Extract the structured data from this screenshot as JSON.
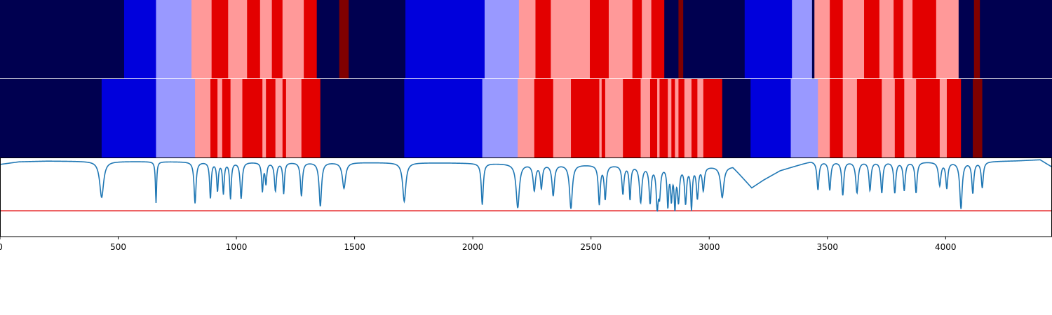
{
  "chart_data": [
    {
      "type": "heatmap",
      "xlim": [
        0,
        4450
      ],
      "colors": {
        "0": "#000050",
        "1": "#0000dc",
        "2": "#9999ff",
        "3": "#ff9999",
        "4": "#e30000",
        "5": "#800000"
      },
      "segments": [
        [
          0,
          525,
          0
        ],
        [
          525,
          660,
          1
        ],
        [
          660,
          810,
          2
        ],
        [
          810,
          895,
          3
        ],
        [
          895,
          965,
          4
        ],
        [
          965,
          1045,
          3
        ],
        [
          1045,
          1100,
          4
        ],
        [
          1100,
          1150,
          3
        ],
        [
          1150,
          1195,
          4
        ],
        [
          1195,
          1285,
          3
        ],
        [
          1285,
          1340,
          4
        ],
        [
          1340,
          1435,
          0
        ],
        [
          1435,
          1475,
          5
        ],
        [
          1475,
          1715,
          0
        ],
        [
          1715,
          2050,
          1
        ],
        [
          2050,
          2195,
          2
        ],
        [
          2195,
          2265,
          3
        ],
        [
          2265,
          2330,
          4
        ],
        [
          2330,
          2495,
          3
        ],
        [
          2495,
          2575,
          4
        ],
        [
          2575,
          2675,
          3
        ],
        [
          2675,
          2715,
          4
        ],
        [
          2715,
          2755,
          3
        ],
        [
          2755,
          2810,
          4
        ],
        [
          2810,
          2870,
          0
        ],
        [
          2870,
          2890,
          5
        ],
        [
          2890,
          3150,
          0
        ],
        [
          3150,
          3350,
          1
        ],
        [
          3350,
          3435,
          2
        ],
        [
          3435,
          3445,
          0
        ],
        [
          3445,
          3510,
          3
        ],
        [
          3510,
          3565,
          4
        ],
        [
          3565,
          3655,
          3
        ],
        [
          3655,
          3720,
          4
        ],
        [
          3720,
          3780,
          3
        ],
        [
          3780,
          3820,
          4
        ],
        [
          3820,
          3860,
          3
        ],
        [
          3860,
          3960,
          4
        ],
        [
          3960,
          4055,
          3
        ],
        [
          4055,
          4120,
          0
        ],
        [
          4120,
          4145,
          5
        ],
        [
          4145,
          4450,
          0
        ]
      ]
    },
    {
      "type": "heatmap",
      "xlim": [
        0,
        4450
      ],
      "colors": {
        "0": "#000050",
        "1": "#0000dc",
        "2": "#9999ff",
        "3": "#ff9999",
        "4": "#e30000",
        "5": "#800000"
      },
      "segments": [
        [
          0,
          430,
          0
        ],
        [
          430,
          660,
          1
        ],
        [
          660,
          825,
          2
        ],
        [
          825,
          890,
          3
        ],
        [
          890,
          920,
          4
        ],
        [
          920,
          940,
          3
        ],
        [
          940,
          975,
          4
        ],
        [
          975,
          1025,
          3
        ],
        [
          1025,
          1110,
          4
        ],
        [
          1110,
          1125,
          3
        ],
        [
          1125,
          1165,
          4
        ],
        [
          1165,
          1195,
          3
        ],
        [
          1195,
          1210,
          4
        ],
        [
          1210,
          1275,
          3
        ],
        [
          1275,
          1355,
          4
        ],
        [
          1355,
          1710,
          0
        ],
        [
          1710,
          2040,
          1
        ],
        [
          2040,
          2190,
          2
        ],
        [
          2190,
          2260,
          3
        ],
        [
          2260,
          2340,
          4
        ],
        [
          2340,
          2415,
          3
        ],
        [
          2415,
          2535,
          4
        ],
        [
          2535,
          2545,
          3
        ],
        [
          2545,
          2560,
          4
        ],
        [
          2560,
          2635,
          3
        ],
        [
          2635,
          2710,
          4
        ],
        [
          2710,
          2750,
          3
        ],
        [
          2750,
          2780,
          4
        ],
        [
          2780,
          2790,
          3
        ],
        [
          2790,
          2825,
          4
        ],
        [
          2825,
          2840,
          3
        ],
        [
          2840,
          2855,
          4
        ],
        [
          2855,
          2870,
          3
        ],
        [
          2870,
          2895,
          4
        ],
        [
          2895,
          2925,
          3
        ],
        [
          2925,
          2950,
          4
        ],
        [
          2950,
          2975,
          3
        ],
        [
          2975,
          3055,
          4
        ],
        [
          3055,
          3175,
          0
        ],
        [
          3175,
          3345,
          1
        ],
        [
          3345,
          3460,
          2
        ],
        [
          3460,
          3510,
          3
        ],
        [
          3510,
          3565,
          4
        ],
        [
          3565,
          3625,
          3
        ],
        [
          3625,
          3730,
          4
        ],
        [
          3730,
          3785,
          3
        ],
        [
          3785,
          3825,
          4
        ],
        [
          3825,
          3875,
          3
        ],
        [
          3875,
          3975,
          4
        ],
        [
          3975,
          4005,
          3
        ],
        [
          4005,
          4065,
          4
        ],
        [
          4065,
          4115,
          0
        ],
        [
          4115,
          4155,
          5
        ],
        [
          4155,
          4450,
          0
        ]
      ]
    },
    {
      "type": "line",
      "xlim": [
        0,
        4450
      ],
      "ylim": [
        -0.5,
        1.02
      ],
      "xticks": [
        0,
        500,
        1000,
        1500,
        2000,
        2500,
        3000,
        3500,
        4000
      ],
      "xtick_labels": [
        "0",
        "500",
        "1000",
        "1500",
        "2000",
        "2500",
        "3000",
        "3500",
        "4000"
      ],
      "threshold": {
        "y": 0.0,
        "color": "#e41a1c"
      },
      "series": [
        {
          "color": "#1f77b4",
          "baseline": 0.97,
          "points": [
            [
              0,
              0.9
            ],
            [
              80,
              0.95
            ],
            [
              200,
              0.965
            ],
            [
              400,
              0.96
            ],
            [
              1900,
              0.93
            ],
            [
              3100,
              0.86
            ],
            [
              3180,
              0.45
            ],
            [
              3230,
              0.6
            ],
            [
              3300,
              0.78
            ],
            [
              3430,
              0.96
            ],
            [
              4100,
              0.95
            ],
            [
              4300,
              0.97
            ],
            [
              4400,
              0.99
            ],
            [
              4450,
              0.85
            ]
          ],
          "dips": [
            [
              430,
              0.7,
              10
            ],
            [
              660,
              0.8,
              3
            ],
            [
              825,
              0.8,
              5
            ],
            [
              890,
              0.7,
              4
            ],
            [
              920,
              0.55,
              4
            ],
            [
              945,
              0.6,
              4
            ],
            [
              975,
              0.7,
              4
            ],
            [
              1020,
              0.7,
              5
            ],
            [
              1110,
              0.55,
              4
            ],
            [
              1125,
              0.4,
              4
            ],
            [
              1165,
              0.55,
              5
            ],
            [
              1200,
              0.6,
              4
            ],
            [
              1275,
              0.65,
              5
            ],
            [
              1355,
              0.85,
              6
            ],
            [
              1455,
              0.5,
              8
            ],
            [
              1710,
              0.75,
              8
            ],
            [
              2040,
              0.8,
              5
            ],
            [
              2190,
              0.85,
              8
            ],
            [
              2260,
              0.5,
              6
            ],
            [
              2290,
              0.45,
              5
            ],
            [
              2340,
              0.6,
              6
            ],
            [
              2415,
              0.85,
              7
            ],
            [
              2535,
              0.75,
              5
            ],
            [
              2560,
              0.65,
              5
            ],
            [
              2635,
              0.55,
              5
            ],
            [
              2665,
              0.65,
              4
            ],
            [
              2710,
              0.7,
              6
            ],
            [
              2750,
              0.7,
              5
            ],
            [
              2780,
              0.75,
              5
            ],
            [
              2790,
              0.5,
              5
            ],
            [
              2825,
              0.75,
              4
            ],
            [
              2840,
              0.6,
              4
            ],
            [
              2855,
              0.75,
              4
            ],
            [
              2870,
              0.65,
              5
            ],
            [
              2900,
              0.7,
              5
            ],
            [
              2925,
              0.8,
              4
            ],
            [
              2950,
              0.6,
              5
            ],
            [
              2975,
              0.45,
              5
            ],
            [
              3055,
              0.6,
              8
            ],
            [
              3460,
              0.55,
              5
            ],
            [
              3510,
              0.55,
              5
            ],
            [
              3565,
              0.65,
              5
            ],
            [
              3625,
              0.6,
              6
            ],
            [
              3680,
              0.55,
              5
            ],
            [
              3730,
              0.6,
              5
            ],
            [
              3785,
              0.6,
              5
            ],
            [
              3825,
              0.55,
              5
            ],
            [
              3875,
              0.6,
              5
            ],
            [
              3975,
              0.45,
              6
            ],
            [
              4005,
              0.5,
              5
            ],
            [
              4065,
              0.9,
              6
            ],
            [
              4115,
              0.6,
              5
            ],
            [
              4155,
              0.5,
              5
            ]
          ]
        }
      ]
    }
  ]
}
